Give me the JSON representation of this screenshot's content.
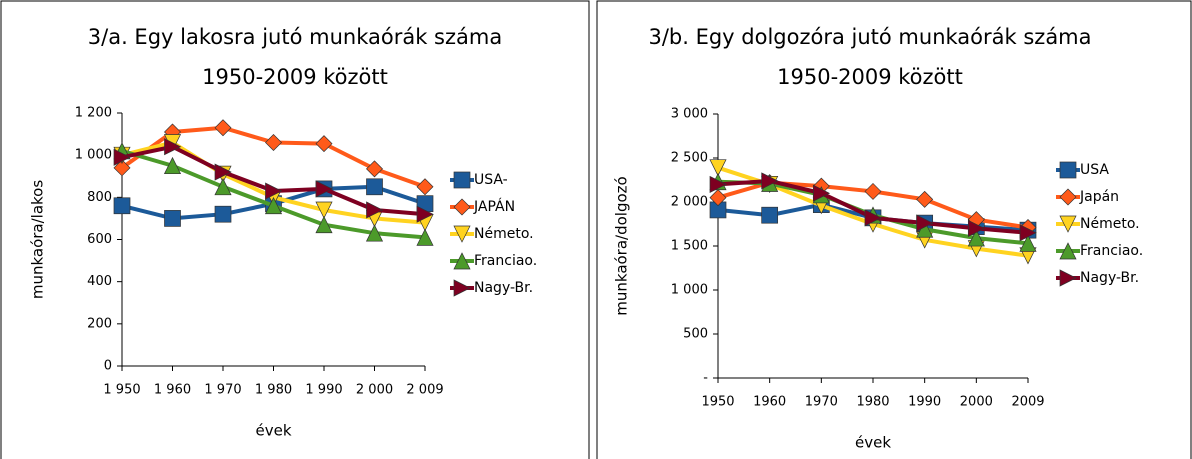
{
  "chart_data": [
    {
      "type": "line",
      "title": "3/a. Egy lakosra jutó munkaórák száma",
      "subtitle": "1950-2009 között",
      "x_label": "évek",
      "y_label": "munkaóra/lakos",
      "grid": false,
      "legend": "right",
      "categories": [
        "1 950",
        "1 960",
        "1 970",
        "1 980",
        "1 990",
        "2 000",
        "2 009"
      ],
      "ylim": [
        0,
        1200
      ],
      "yticks": [
        0,
        200,
        400,
        600,
        800,
        {
          "value": 1000,
          "label": "1 000"
        },
        {
          "value": 1200,
          "label": "1 200"
        }
      ],
      "series": [
        {
          "name": "USA-",
          "color": "#1c5a99",
          "marker": "square",
          "values": [
            760,
            700,
            720,
            770,
            840,
            850,
            770
          ]
        },
        {
          "name": "JAPÁN",
          "color": "#ff5a1a",
          "marker": "diamond",
          "values": [
            940,
            1110,
            1130,
            1060,
            1055,
            935,
            850
          ]
        },
        {
          "name": "Németo.",
          "color": "#ffd320",
          "marker": "triangle-down",
          "values": [
            1000,
            1060,
            910,
            800,
            740,
            700,
            680
          ]
        },
        {
          "name": "Franciao.",
          "color": "#4c9a2a",
          "marker": "triangle-up",
          "values": [
            1020,
            950,
            850,
            760,
            670,
            630,
            610
          ]
        },
        {
          "name": "Nagy-Br.",
          "color": "#7e0021",
          "marker": "triangle-right",
          "values": [
            990,
            1040,
            920,
            830,
            840,
            740,
            720
          ]
        }
      ]
    },
    {
      "type": "line",
      "title": "3/b. Egy dolgozóra jutó munkaórák száma",
      "subtitle": "1950-2009 között",
      "x_label": "évek",
      "y_label": "munkaóra/dolgozó",
      "grid": false,
      "legend": "right",
      "categories": [
        "1950",
        "1960",
        "1970",
        "1980",
        "1990",
        "2000",
        "2009"
      ],
      "ylim": [
        0,
        3000
      ],
      "yticks": [
        {
          "value": 0,
          "label": "-"
        },
        500,
        {
          "value": 1000,
          "label": "1 000"
        },
        {
          "value": 1500,
          "label": "1 500"
        },
        {
          "value": 2000,
          "label": "2 000"
        },
        {
          "value": 2500,
          "label": "2 500"
        },
        {
          "value": 3000,
          "label": "3 000"
        }
      ],
      "series": [
        {
          "name": "USA",
          "color": "#1c5a99",
          "marker": "square",
          "values": [
            1910,
            1850,
            1970,
            1820,
            1760,
            1720,
            1680
          ]
        },
        {
          "name": "Japán",
          "color": "#ff5a1a",
          "marker": "diamond",
          "values": [
            2050,
            2220,
            2180,
            2120,
            2030,
            1800,
            1710
          ]
        },
        {
          "name": "Németo.",
          "color": "#ffd320",
          "marker": "triangle-down",
          "values": [
            2390,
            2200,
            1960,
            1750,
            1570,
            1470,
            1390
          ]
        },
        {
          "name": "Franciao.",
          "color": "#4c9a2a",
          "marker": "triangle-up",
          "values": [
            2230,
            2210,
            2080,
            1850,
            1690,
            1590,
            1530
          ]
        },
        {
          "name": "Nagy-Br.",
          "color": "#7e0021",
          "marker": "triangle-right",
          "values": [
            2200,
            2240,
            2100,
            1820,
            1760,
            1700,
            1650
          ]
        }
      ]
    }
  ]
}
